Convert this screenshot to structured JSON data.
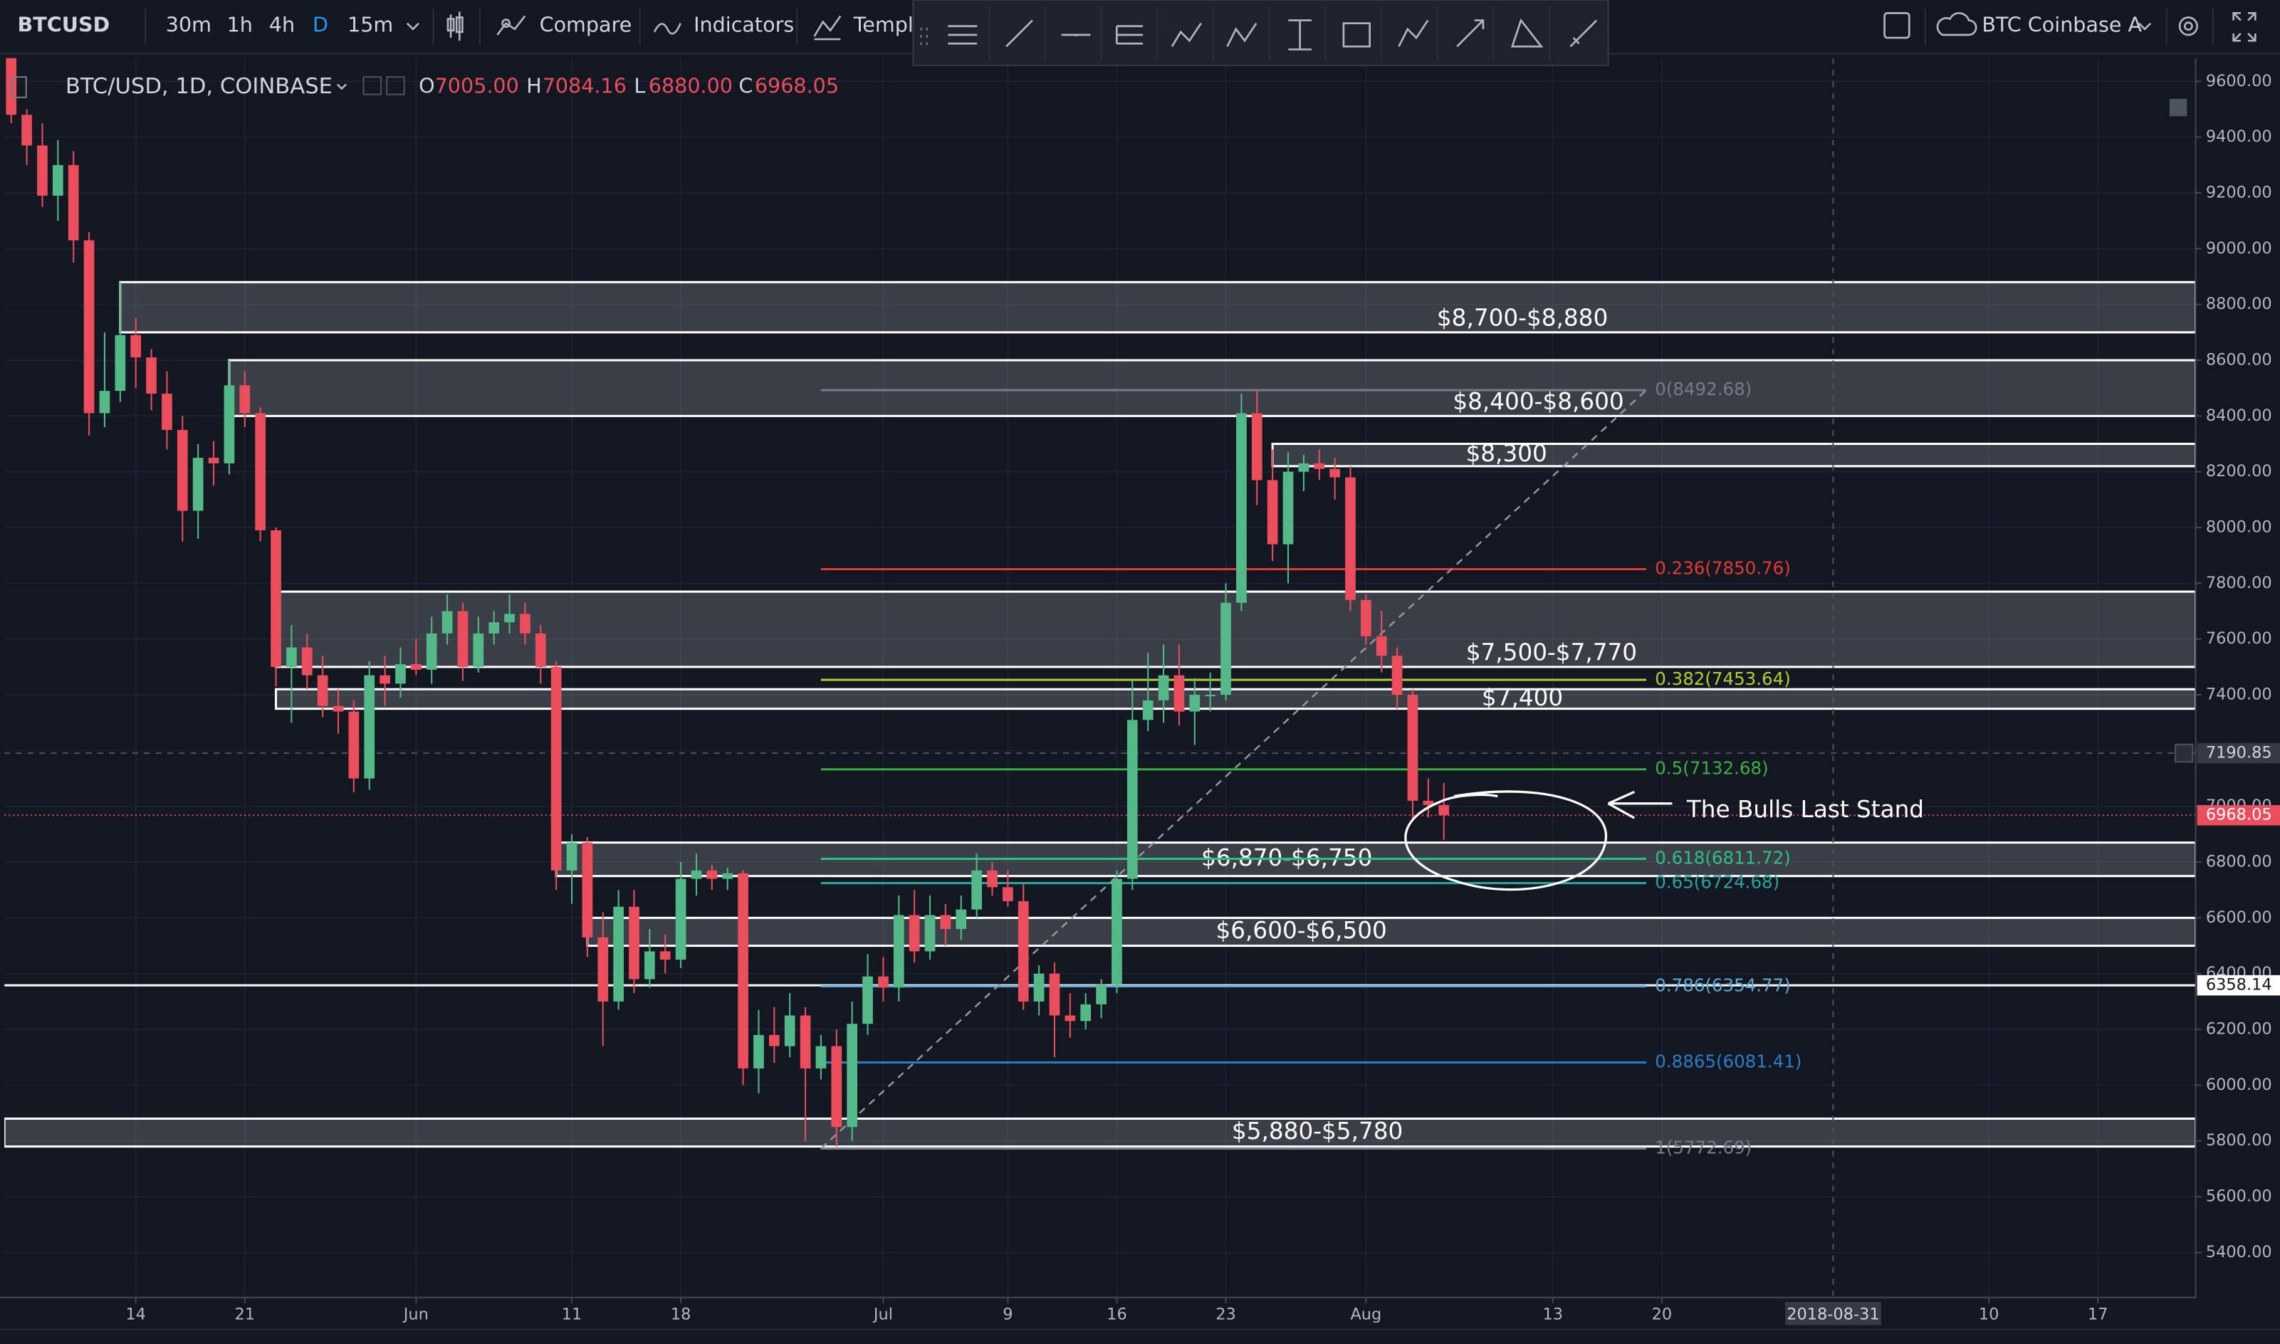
{
  "toolbar": {
    "symbol": "BTCUSD",
    "intervals": [
      "30m",
      "1h",
      "4h",
      "D",
      "15m"
    ],
    "compare": "Compare",
    "indicators": "Indicators",
    "templates": "Templa",
    "data_source": "BTC Coinbase A"
  },
  "legend": {
    "title": "BTC/USD, 1D, COINBASE",
    "items": [
      {
        "key": "O",
        "value": "7005.00"
      },
      {
        "key": "H",
        "value": "7084.16"
      },
      {
        "key": "L",
        "value": "6880.00"
      },
      {
        "key": "C",
        "value": "6968.05"
      }
    ]
  },
  "chart_data": {
    "type": "candlestick",
    "up_color": "#53b987",
    "down_color": "#eb4d5c",
    "x": [
      "2018-05-06",
      "2018-05-07",
      "2018-05-08",
      "2018-05-09",
      "2018-05-10",
      "2018-05-11",
      "2018-05-12",
      "2018-05-13",
      "2018-05-14",
      "2018-05-15",
      "2018-05-16",
      "2018-05-17",
      "2018-05-18",
      "2018-05-19",
      "2018-05-20",
      "2018-05-21",
      "2018-05-22",
      "2018-05-23",
      "2018-05-24",
      "2018-05-25",
      "2018-05-26",
      "2018-05-27",
      "2018-05-28",
      "2018-05-29",
      "2018-05-30",
      "2018-05-31",
      "2018-06-01",
      "2018-06-02",
      "2018-06-03",
      "2018-06-04",
      "2018-06-05",
      "2018-06-06",
      "2018-06-07",
      "2018-06-08",
      "2018-06-09",
      "2018-06-10",
      "2018-06-11",
      "2018-06-12",
      "2018-06-13",
      "2018-06-14",
      "2018-06-15",
      "2018-06-16",
      "2018-06-17",
      "2018-06-18",
      "2018-06-19",
      "2018-06-20",
      "2018-06-21",
      "2018-06-22",
      "2018-06-23",
      "2018-06-24",
      "2018-06-25",
      "2018-06-26",
      "2018-06-27",
      "2018-06-28",
      "2018-06-29",
      "2018-06-30",
      "2018-07-01",
      "2018-07-02",
      "2018-07-03",
      "2018-07-04",
      "2018-07-05",
      "2018-07-06",
      "2018-07-07",
      "2018-07-08",
      "2018-07-09",
      "2018-07-10",
      "2018-07-11",
      "2018-07-12",
      "2018-07-13",
      "2018-07-14",
      "2018-07-15",
      "2018-07-16",
      "2018-07-17",
      "2018-07-18",
      "2018-07-19",
      "2018-07-20",
      "2018-07-21",
      "2018-07-22",
      "2018-07-23",
      "2018-07-24",
      "2018-07-25",
      "2018-07-26",
      "2018-07-27",
      "2018-07-28",
      "2018-07-29",
      "2018-07-30",
      "2018-07-31",
      "2018-08-01",
      "2018-08-02",
      "2018-08-03",
      "2018-08-04",
      "2018-08-05",
      "2018-08-06"
    ],
    "open": [
      9700,
      9480,
      9370,
      9190,
      9300,
      9030,
      8410,
      8490,
      8690,
      8610,
      8480,
      8350,
      8060,
      8250,
      8230,
      8510,
      8410,
      7990,
      7500,
      7570,
      7470,
      7360,
      7340,
      7100,
      7470,
      7440,
      7510,
      7490,
      7620,
      7700,
      7500,
      7620,
      7660,
      7690,
      7620,
      7500,
      6770,
      6870,
      6530,
      6300,
      6640,
      6380,
      6480,
      6450,
      6740,
      6770,
      6740,
      6760,
      6060,
      6180,
      6140,
      6250,
      6060,
      6140,
      5850,
      6220,
      6390,
      6350,
      6610,
      6480,
      6610,
      6560,
      6630,
      6770,
      6710,
      6660,
      6300,
      6400,
      6250,
      6230,
      6290,
      6360,
      6740,
      7310,
      7380,
      7470,
      7340,
      7400,
      7400,
      7730,
      8410,
      8170,
      7940,
      8200,
      8230,
      8210,
      8180,
      7740,
      7610,
      7540,
      7400,
      7020,
      7005
    ],
    "high": [
      9750,
      9500,
      9450,
      9390,
      9350,
      9060,
      8700,
      8880,
      8750,
      8640,
      8560,
      8400,
      8300,
      8310,
      8600,
      8560,
      8430,
      8000,
      7650,
      7620,
      7540,
      7420,
      7380,
      7520,
      7540,
      7570,
      7600,
      7680,
      7760,
      7730,
      7680,
      7700,
      7760,
      7730,
      7650,
      7520,
      6900,
      6890,
      6620,
      6700,
      6700,
      6560,
      6540,
      6800,
      6830,
      6790,
      6780,
      6770,
      6270,
      6280,
      6330,
      6280,
      6180,
      6200,
      6300,
      6470,
      6460,
      6680,
      6700,
      6680,
      6650,
      6680,
      6830,
      6800,
      6770,
      6720,
      6430,
      6440,
      6330,
      6330,
      6380,
      6770,
      7450,
      7550,
      7580,
      7580,
      7460,
      7480,
      7800,
      8480,
      8490,
      8280,
      8270,
      8260,
      8280,
      8250,
      8220,
      7760,
      7700,
      7570,
      7420,
      7100,
      7084.16
    ],
    "low": [
      9450,
      9300,
      9150,
      9100,
      8950,
      8330,
      8360,
      8450,
      8500,
      8420,
      8280,
      7950,
      7960,
      8150,
      8190,
      8360,
      7950,
      7430,
      7300,
      7420,
      7320,
      7260,
      7050,
      7060,
      7360,
      7390,
      7470,
      7440,
      7580,
      7450,
      7480,
      7580,
      7620,
      7580,
      7440,
      6700,
      6650,
      6460,
      6140,
      6270,
      6330,
      6350,
      6400,
      6420,
      6680,
      6700,
      6700,
      6000,
      5970,
      6080,
      6100,
      5800,
      6020,
      5780,
      5800,
      6180,
      6300,
      6300,
      6440,
      6450,
      6500,
      6520,
      6600,
      6680,
      6640,
      6270,
      6250,
      6100,
      6170,
      6200,
      6240,
      6330,
      6700,
      7270,
      7300,
      7290,
      7220,
      7340,
      7380,
      7700,
      8080,
      7880,
      7800,
      8130,
      8170,
      8100,
      7700,
      7580,
      7480,
      7350,
      6950,
      6960,
      6880
    ],
    "close": [
      9480,
      9370,
      9190,
      9300,
      9030,
      8410,
      8490,
      8690,
      8610,
      8480,
      8350,
      8060,
      8250,
      8230,
      8510,
      8410,
      7990,
      7500,
      7570,
      7470,
      7360,
      7340,
      7100,
      7470,
      7440,
      7510,
      7490,
      7620,
      7700,
      7500,
      7620,
      7660,
      7690,
      7620,
      7500,
      6770,
      6870,
      6530,
      6300,
      6640,
      6380,
      6480,
      6450,
      6740,
      6770,
      6740,
      6760,
      6060,
      6180,
      6140,
      6250,
      6060,
      6140,
      5850,
      6220,
      6390,
      6350,
      6610,
      6480,
      6610,
      6560,
      6630,
      6770,
      6710,
      6660,
      6300,
      6400,
      6250,
      6230,
      6290,
      6360,
      6740,
      7310,
      7380,
      7470,
      7340,
      7400,
      7400,
      7730,
      8410,
      8170,
      7940,
      8200,
      8230,
      8210,
      8180,
      7740,
      7610,
      7540,
      7400,
      7020,
      7005,
      6968.05
    ],
    "xlim": [
      "2018-05-05",
      "2018-09-23"
    ],
    "ylim": [
      5238.5,
      9683.4
    ],
    "xticks": [
      {
        "value": "2018-05-14",
        "label": "14"
      },
      {
        "value": "2018-05-21",
        "label": "21"
      },
      {
        "value": "2018-06-01",
        "label": "Jun"
      },
      {
        "value": "2018-06-11",
        "label": "11"
      },
      {
        "value": "2018-06-18",
        "label": "18"
      },
      {
        "value": "2018-07-01",
        "label": "Jul"
      },
      {
        "value": "2018-07-09",
        "label": "9"
      },
      {
        "value": "2018-07-16",
        "label": "16"
      },
      {
        "value": "2018-07-23",
        "label": "23"
      },
      {
        "value": "2018-08-01",
        "label": "Aug"
      },
      {
        "value": "2018-08-13",
        "label": "13"
      },
      {
        "value": "2018-08-20",
        "label": "20"
      },
      {
        "value": "2018-09-10",
        "label": "10"
      },
      {
        "value": "2018-09-17",
        "label": "17"
      }
    ],
    "yticks": [
      {
        "value": 5400,
        "label": "5400.00"
      },
      {
        "value": 5600,
        "label": "5600.00"
      },
      {
        "value": 5800,
        "label": "5800.00"
      },
      {
        "value": 6000,
        "label": "6000.00"
      },
      {
        "value": 6200,
        "label": "6200.00"
      },
      {
        "value": 6400,
        "label": "6400.00"
      },
      {
        "value": 6600,
        "label": "6600.00"
      },
      {
        "value": 6800,
        "label": "6800.00"
      },
      {
        "value": 7000,
        "label": "7000.00"
      },
      {
        "value": 7200,
        "label": "7200.00"
      },
      {
        "value": 7400,
        "label": "7400.00"
      },
      {
        "value": 7600,
        "label": "7600.00"
      },
      {
        "value": 7800,
        "label": "7800.00"
      },
      {
        "value": 8000,
        "label": "8000.00"
      },
      {
        "value": 8200,
        "label": "8200.00"
      },
      {
        "value": 8400,
        "label": "8400.00"
      },
      {
        "value": 8600,
        "label": "8600.00"
      },
      {
        "value": 8800,
        "label": "8800.00"
      },
      {
        "value": 9000,
        "label": "9000.00"
      },
      {
        "value": 9200,
        "label": "9200.00"
      },
      {
        "value": 9400,
        "label": "9400.00"
      },
      {
        "value": 9600,
        "label": "9600.00"
      }
    ],
    "grid": true,
    "zones": [
      {
        "label": "$8,700-$8,880",
        "low": 8700,
        "high": 8880,
        "start": "2018-05-13"
      },
      {
        "label": "$8,400-$8,600",
        "low": 8400,
        "high": 8600,
        "start": "2018-05-20"
      },
      {
        "label": "$8,300",
        "low": 8220,
        "high": 8300,
        "start": "2018-07-26"
      },
      {
        "label": "$7,500-$7,770",
        "low": 7500,
        "high": 7770,
        "start": "2018-05-23"
      },
      {
        "label": "$7,400",
        "low": 7350,
        "high": 7420,
        "start": "2018-05-23"
      },
      {
        "label": "$6,870-$6,750",
        "low": 6750,
        "high": 6870,
        "start": "2018-06-10"
      },
      {
        "label": "$6,600-$6,500",
        "low": 6500,
        "high": 6600,
        "start": "2018-06-12"
      },
      {
        "label": "$5,880-$5,780",
        "low": 5780,
        "high": 5880,
        "start": null
      }
    ],
    "fib": {
      "start": "2018-06-27",
      "end": "2018-08-19",
      "levels": [
        {
          "price": 8492.68,
          "label": "0(8492.68)",
          "color": "#787b86"
        },
        {
          "price": 7850.76,
          "label": "0.236(7850.76)",
          "color": "#e53935"
        },
        {
          "price": 7453.64,
          "label": "0.382(7453.64)",
          "color": "#b8cc2e"
        },
        {
          "price": 7132.68,
          "label": "0.5(7132.68)",
          "color": "#3cb043"
        },
        {
          "price": 6811.72,
          "label": "0.618(6811.72)",
          "color": "#2fbf80"
        },
        {
          "price": 6724.68,
          "label": "0.65(6724.68)",
          "color": "#26a69a"
        },
        {
          "price": 6354.77,
          "label": "0.786(6354.77)",
          "color": "#5fa8d3"
        },
        {
          "price": 6081.41,
          "label": "0.8865(6081.41)",
          "color": "#2a7ec8"
        },
        {
          "price": 5772.69,
          "label": "1(5772.69)",
          "color": "#787b86"
        }
      ]
    },
    "horizontal_line": {
      "value": 6358.14,
      "label": "6358.14"
    },
    "last_price": {
      "value": 6968.05,
      "label": "6968.05"
    },
    "crosshair": {
      "price": {
        "value": 7190.85,
        "label": "7190.85"
      },
      "date": "2018-08-31"
    },
    "annotation": "The Bulls Last Stand"
  }
}
